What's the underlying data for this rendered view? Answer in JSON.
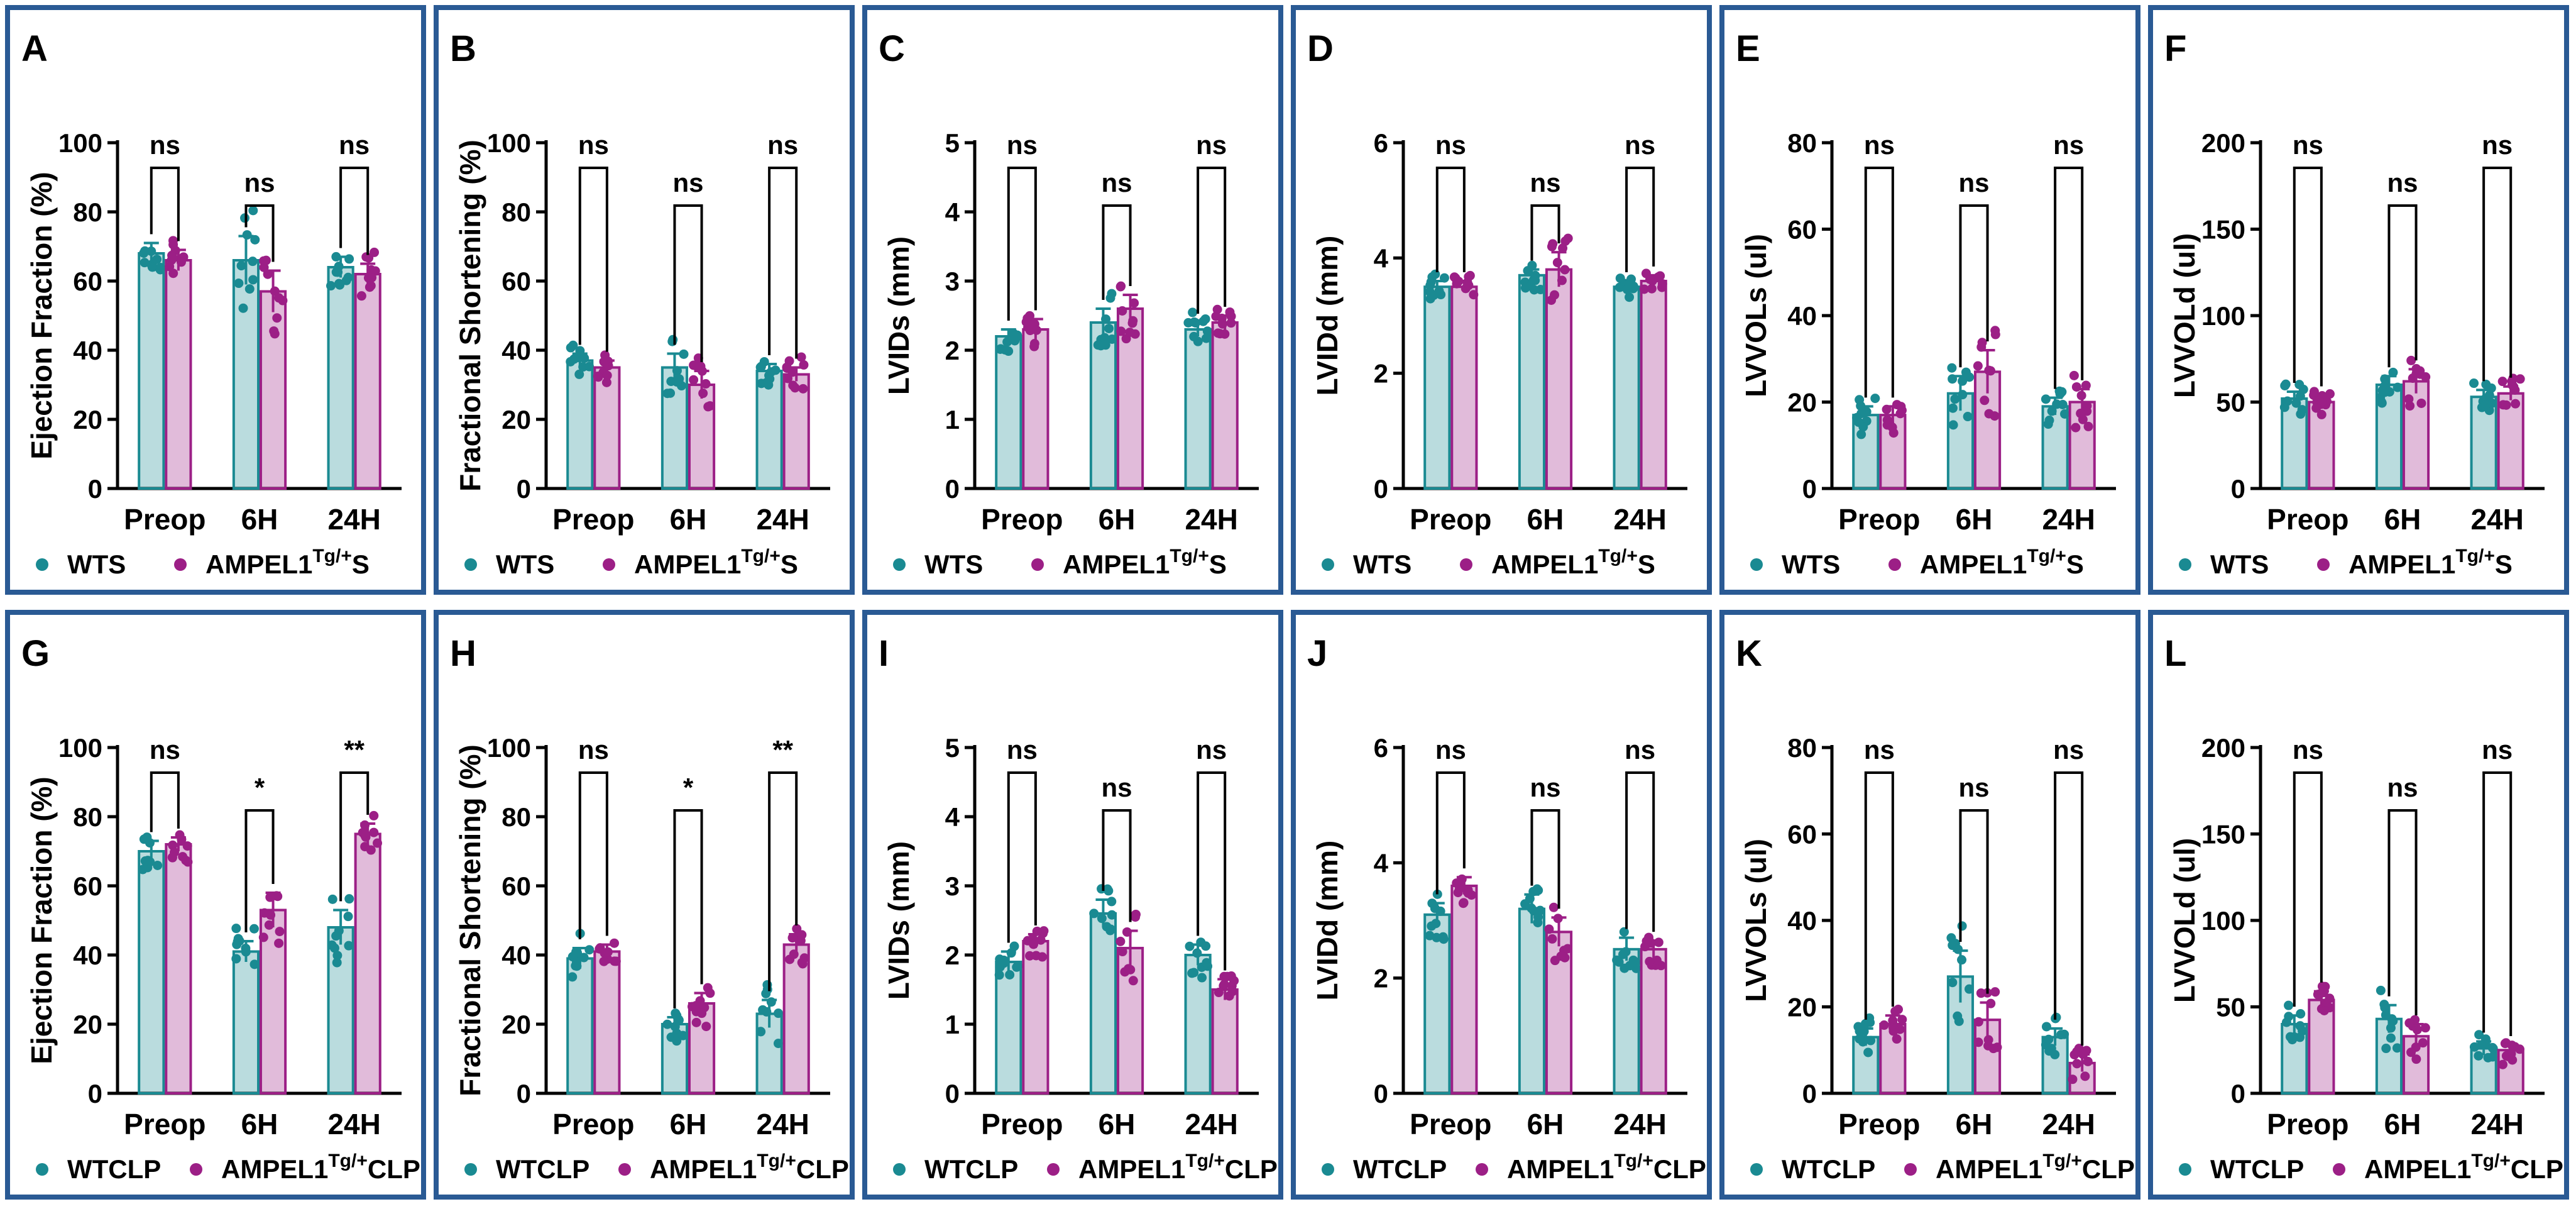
{
  "colors": {
    "wt": "#1a8a92",
    "ampel": "#9c1f86",
    "border": "#2a5a94",
    "axis": "#000000",
    "sig": "#000000"
  },
  "groups": [
    "Preop",
    "6H",
    "24H"
  ],
  "legend_text": {
    "sepsis": {
      "wt": "WTS",
      "ampel_prefix": "AMPEL1",
      "ampel_sup": "Tg/+",
      "ampel_suffix": "S"
    },
    "clp": {
      "wt": "WTCLP",
      "ampel_prefix": "AMPEL1",
      "ampel_sup": "Tg/+",
      "ampel_suffix": "CLP"
    }
  },
  "chart_data": [
    {
      "letter": "A",
      "type": "bar",
      "cohort": "sepsis",
      "ylabel": "Ejection Fraction (%)",
      "ylim": [
        0,
        100
      ],
      "yticks": [
        0,
        20,
        40,
        60,
        80,
        100
      ],
      "categories": [
        "Preop",
        "6H",
        "24H"
      ],
      "series": [
        {
          "name": "WTS",
          "values": [
            68,
            66,
            64
          ],
          "sem": [
            3,
            7,
            3
          ]
        },
        {
          "name": "AMPEL1Tg/+S",
          "values": [
            66,
            57,
            62
          ],
          "sem": [
            3,
            6,
            3
          ]
        }
      ],
      "significance": [
        "ns",
        "ns",
        "ns"
      ]
    },
    {
      "letter": "B",
      "type": "bar",
      "cohort": "sepsis",
      "ylabel": "Fractional Shortening (%)",
      "ylim": [
        0,
        100
      ],
      "yticks": [
        0,
        20,
        40,
        60,
        80,
        100
      ],
      "categories": [
        "Preop",
        "6H",
        "24H"
      ],
      "series": [
        {
          "name": "WTS",
          "values": [
            37,
            35,
            34
          ],
          "sem": [
            2,
            4,
            2
          ]
        },
        {
          "name": "AMPEL1Tg/+S",
          "values": [
            35,
            30,
            33
          ],
          "sem": [
            2,
            4,
            2
          ]
        }
      ],
      "significance": [
        "ns",
        "ns",
        "ns"
      ]
    },
    {
      "letter": "C",
      "type": "bar",
      "cohort": "sepsis",
      "ylabel": "LVIDs (mm)",
      "ylim": [
        0,
        5
      ],
      "yticks": [
        0,
        1,
        2,
        3,
        4,
        5
      ],
      "categories": [
        "Preop",
        "6H",
        "24H"
      ],
      "series": [
        {
          "name": "WTS",
          "values": [
            2.2,
            2.4,
            2.3
          ],
          "sem": [
            0.1,
            0.2,
            0.1
          ]
        },
        {
          "name": "AMPEL1Tg/+S",
          "values": [
            2.3,
            2.6,
            2.4
          ],
          "sem": [
            0.15,
            0.2,
            0.1
          ]
        }
      ],
      "significance": [
        "ns",
        "ns",
        "ns"
      ]
    },
    {
      "letter": "D",
      "type": "bar",
      "cohort": "sepsis",
      "ylabel": "LVIDd (mm)",
      "ylim": [
        0,
        6
      ],
      "yticks": [
        0,
        2,
        4,
        6
      ],
      "categories": [
        "Preop",
        "6H",
        "24H"
      ],
      "series": [
        {
          "name": "WTS",
          "values": [
            3.5,
            3.7,
            3.5
          ],
          "sem": [
            0.1,
            0.1,
            0.1
          ]
        },
        {
          "name": "AMPEL1Tg/+S",
          "values": [
            3.5,
            3.8,
            3.6
          ],
          "sem": [
            0.1,
            0.3,
            0.1
          ]
        }
      ],
      "significance": [
        "ns",
        "ns",
        "ns"
      ]
    },
    {
      "letter": "E",
      "type": "bar",
      "cohort": "sepsis",
      "ylabel": "LVVOLs (ul)",
      "ylim": [
        0,
        80
      ],
      "yticks": [
        0,
        20,
        40,
        60,
        80
      ],
      "categories": [
        "Preop",
        "6H",
        "24H"
      ],
      "series": [
        {
          "name": "WTS",
          "values": [
            17,
            22,
            19
          ],
          "sem": [
            2,
            4,
            2
          ]
        },
        {
          "name": "AMPEL1Tg/+S",
          "values": [
            17,
            27,
            20
          ],
          "sem": [
            2,
            5,
            3
          ]
        }
      ],
      "significance": [
        "ns",
        "ns",
        "ns"
      ]
    },
    {
      "letter": "F",
      "type": "bar",
      "cohort": "sepsis",
      "ylabel": "LVVOLd (ul)",
      "ylim": [
        0,
        200
      ],
      "yticks": [
        0,
        50,
        100,
        150,
        200
      ],
      "categories": [
        "Preop",
        "6H",
        "24H"
      ],
      "series": [
        {
          "name": "WTS",
          "values": [
            52,
            60,
            53
          ],
          "sem": [
            4,
            5,
            4
          ]
        },
        {
          "name": "AMPEL1Tg/+S",
          "values": [
            50,
            62,
            55
          ],
          "sem": [
            4,
            7,
            4
          ]
        }
      ],
      "significance": [
        "ns",
        "ns",
        "ns"
      ]
    },
    {
      "letter": "G",
      "type": "bar",
      "cohort": "clp",
      "ylabel": "Ejection Fraction (%)",
      "ylim": [
        0,
        100
      ],
      "yticks": [
        0,
        20,
        40,
        60,
        80,
        100
      ],
      "categories": [
        "Preop",
        "6H",
        "24H"
      ],
      "series": [
        {
          "name": "WTCLP",
          "values": [
            70,
            41,
            48
          ],
          "sem": [
            3,
            3,
            5
          ]
        },
        {
          "name": "AMPEL1Tg/+CLP",
          "values": [
            72,
            53,
            75
          ],
          "sem": [
            2,
            5,
            3
          ]
        }
      ],
      "significance": [
        "ns",
        "*",
        "**"
      ]
    },
    {
      "letter": "H",
      "type": "bar",
      "cohort": "clp",
      "ylabel": "Fractional Shortening (%)",
      "ylim": [
        0,
        100
      ],
      "yticks": [
        0,
        20,
        40,
        60,
        80,
        100
      ],
      "categories": [
        "Preop",
        "6H",
        "24H"
      ],
      "series": [
        {
          "name": "WTCLP",
          "values": [
            39,
            20,
            23
          ],
          "sem": [
            3,
            2,
            4
          ]
        },
        {
          "name": "AMPEL1Tg/+CLP",
          "values": [
            41,
            26,
            43
          ],
          "sem": [
            2,
            3,
            3
          ]
        }
      ],
      "significance": [
        "ns",
        "*",
        "**"
      ]
    },
    {
      "letter": "I",
      "type": "bar",
      "cohort": "clp",
      "ylabel": "LVIDs (mm)",
      "ylim": [
        0,
        5
      ],
      "yticks": [
        0,
        1,
        2,
        3,
        4,
        5
      ],
      "categories": [
        "Preop",
        "6H",
        "24H"
      ],
      "series": [
        {
          "name": "WTCLP",
          "values": [
            1.9,
            2.6,
            2.0
          ],
          "sem": [
            0.15,
            0.2,
            0.15
          ]
        },
        {
          "name": "AMPEL1Tg/+CLP",
          "values": [
            2.2,
            2.1,
            1.5
          ],
          "sem": [
            0.1,
            0.25,
            0.15
          ]
        }
      ],
      "significance": [
        "ns",
        "ns",
        "ns"
      ]
    },
    {
      "letter": "J",
      "type": "bar",
      "cohort": "clp",
      "ylabel": "LVIDd (mm)",
      "ylim": [
        0,
        6
      ],
      "yticks": [
        0,
        2,
        4,
        6
      ],
      "categories": [
        "Preop",
        "6H",
        "24H"
      ],
      "series": [
        {
          "name": "WTCLP",
          "values": [
            3.1,
            3.2,
            2.5
          ],
          "sem": [
            0.2,
            0.25,
            0.2
          ]
        },
        {
          "name": "AMPEL1Tg/+CLP",
          "values": [
            3.6,
            2.8,
            2.5
          ],
          "sem": [
            0.15,
            0.25,
            0.15
          ]
        }
      ],
      "significance": [
        "ns",
        "ns",
        "ns"
      ]
    },
    {
      "letter": "K",
      "type": "bar",
      "cohort": "clp",
      "ylabel": "LVVOLs (ul)",
      "ylim": [
        0,
        80
      ],
      "yticks": [
        0,
        20,
        40,
        60,
        80
      ],
      "categories": [
        "Preop",
        "6H",
        "24H"
      ],
      "series": [
        {
          "name": "WTCLP",
          "values": [
            13,
            27,
            13
          ],
          "sem": [
            2,
            6,
            2
          ]
        },
        {
          "name": "AMPEL1Tg/+CLP",
          "values": [
            16,
            17,
            7
          ],
          "sem": [
            2,
            4,
            2
          ]
        }
      ],
      "significance": [
        "ns",
        "ns",
        "ns"
      ]
    },
    {
      "letter": "L",
      "type": "bar",
      "cohort": "clp",
      "ylabel": "LVVOLd (ul)",
      "ylim": [
        0,
        200
      ],
      "yticks": [
        0,
        50,
        100,
        150,
        200
      ],
      "categories": [
        "Preop",
        "6H",
        "24H"
      ],
      "series": [
        {
          "name": "WTCLP",
          "values": [
            40,
            43,
            26
          ],
          "sem": [
            5,
            8,
            4
          ]
        },
        {
          "name": "AMPEL1Tg/+CLP",
          "values": [
            54,
            33,
            25
          ],
          "sem": [
            5,
            7,
            3
          ]
        }
      ],
      "significance": [
        "ns",
        "ns",
        "ns"
      ]
    }
  ]
}
